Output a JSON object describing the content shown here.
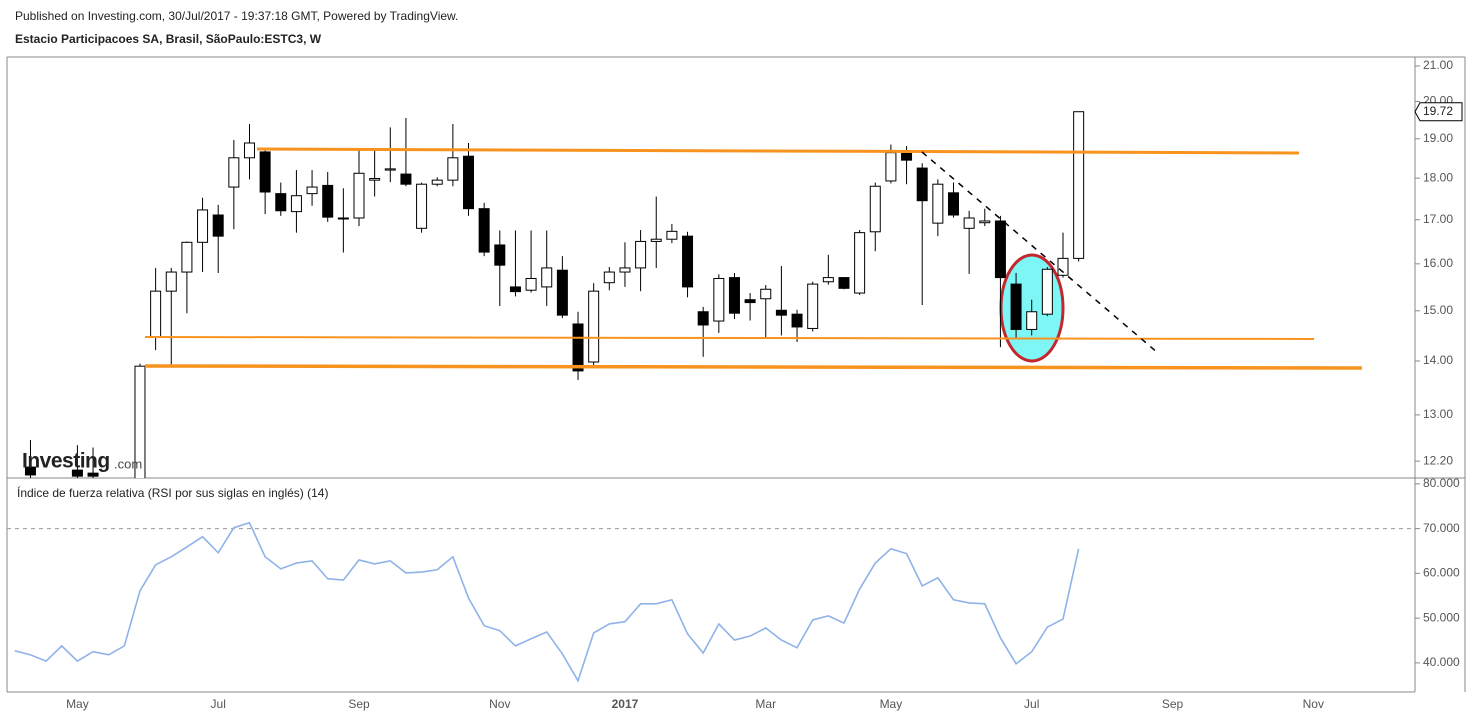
{
  "header": {
    "published": "Published on Investing.com, 30/Jul/2017 - 19:37:18 GMT, Powered by TradingView."
  },
  "logo": {
    "brand": "Investing",
    "suffix": ".com"
  },
  "chart_data": [
    {
      "type": "candlestick",
      "title": "Estacio Participacoes SA, Brasil, SãoPaulo:ESTC3, W",
      "categories": [
        null,
        null,
        null,
        null,
        "May",
        null,
        null,
        null,
        null,
        null,
        null,
        null,
        null,
        "Jul",
        null,
        null,
        null,
        null,
        null,
        null,
        null,
        null,
        "Sep",
        null,
        null,
        null,
        null,
        null,
        null,
        null,
        null,
        "Nov",
        null,
        null,
        null,
        null,
        null,
        null,
        null,
        "2017",
        null,
        null,
        null,
        null,
        null,
        null,
        null,
        null,
        "Mar",
        null,
        null,
        null,
        null,
        null,
        null,
        null,
        "May",
        null,
        null,
        null,
        null,
        null,
        null,
        null,
        null,
        "Jul",
        null,
        null,
        null,
        null,
        null,
        null,
        null,
        null,
        "Sep",
        null,
        null,
        null,
        null,
        null,
        null,
        null,
        null,
        "Nov",
        null,
        null,
        null,
        null,
        null,
        null
      ],
      "open": [
        null,
        12.1,
        null,
        null,
        12.05,
        12.0,
        null,
        null,
        11.5,
        14.47,
        15.41,
        15.82,
        16.48,
        17.11,
        17.78,
        18.51,
        18.66,
        17.62,
        17.19,
        17.62,
        17.82,
        17.02,
        17.04,
        17.95,
        18.2,
        18.1,
        16.8,
        17.85,
        17.95,
        18.55,
        17.26,
        16.42,
        15.5,
        15.43,
        15.5,
        15.86,
        14.73,
        13.98,
        15.59,
        15.82,
        15.91,
        16.5,
        16.55,
        16.62,
        14.98,
        14.79,
        15.7,
        15.23,
        15.25,
        15.01,
        14.93,
        14.64,
        15.61,
        15.7,
        15.37,
        16.72,
        17.93,
        18.62,
        18.25,
        16.92,
        17.64,
        16.8,
        16.93,
        16.97,
        15.56,
        14.62,
        14.93,
        15.75,
        16.12,
        null,
        null,
        null,
        null,
        null,
        null,
        null,
        null,
        null,
        null,
        null,
        null,
        null,
        null,
        null,
        null,
        null,
        null,
        null,
        null,
        null
      ],
      "high": [
        null,
        12.56,
        null,
        null,
        12.47,
        12.43,
        null,
        null,
        13.95,
        15.91,
        15.91,
        16.5,
        17.52,
        17.35,
        18.97,
        19.39,
        18.7,
        17.89,
        18.2,
        18.2,
        18.15,
        17.75,
        18.7,
        18.7,
        19.3,
        19.55,
        17.89,
        18.02,
        19.39,
        18.89,
        17.4,
        16.75,
        16.75,
        16.75,
        16.75,
        16.17,
        14.98,
        15.58,
        15.93,
        16.48,
        16.76,
        17.55,
        16.9,
        16.72,
        15.08,
        15.77,
        15.8,
        15.37,
        15.54,
        15.95,
        15.02,
        15.61,
        16.2,
        15.71,
        16.76,
        17.89,
        18.85,
        18.81,
        18.37,
        17.97,
        17.89,
        17.21,
        17.26,
        17.09,
        15.8,
        15.23,
        15.93,
        16.7,
        19.72,
        null,
        null,
        null,
        null,
        null,
        null,
        null,
        null,
        null,
        null,
        null,
        null,
        null,
        null,
        null,
        null,
        null,
        null,
        null,
        null,
        null
      ],
      "low": [
        null,
        11.9,
        null,
        null,
        11.9,
        11.9,
        null,
        null,
        11.4,
        14.21,
        13.9,
        14.95,
        15.82,
        15.8,
        16.78,
        17.97,
        17.13,
        17.09,
        16.7,
        17.33,
        16.95,
        16.25,
        16.85,
        17.55,
        17.9,
        17.8,
        16.7,
        17.8,
        17.8,
        17.09,
        16.17,
        15.1,
        15.3,
        15.38,
        15.1,
        14.85,
        13.64,
        13.9,
        15.43,
        15.5,
        15.41,
        15.91,
        16.46,
        15.28,
        14.08,
        14.55,
        14.83,
        14.8,
        14.45,
        14.5,
        14.37,
        14.58,
        15.55,
        15.45,
        15.33,
        16.28,
        17.87,
        17.85,
        15.12,
        16.62,
        17.05,
        15.78,
        16.85,
        14.27,
        14.45,
        14.5,
        14.89,
        15.7,
        16.05,
        null,
        null,
        null,
        null,
        null,
        null,
        null,
        null,
        null,
        null,
        null,
        null,
        null,
        null,
        null,
        null,
        null,
        null,
        null,
        null,
        null
      ],
      "close": [
        null,
        11.97,
        null,
        null,
        11.95,
        11.95,
        null,
        null,
        13.9,
        15.41,
        15.82,
        16.48,
        17.23,
        16.62,
        18.51,
        18.89,
        17.66,
        17.21,
        17.57,
        17.78,
        17.06,
        17.04,
        18.12,
        17.99,
        18.23,
        17.85,
        17.85,
        17.95,
        18.51,
        17.26,
        16.26,
        15.97,
        15.4,
        15.68,
        15.91,
        14.91,
        13.81,
        15.41,
        15.82,
        15.91,
        16.5,
        16.55,
        16.73,
        15.5,
        14.71,
        15.68,
        14.95,
        15.17,
        15.45,
        14.91,
        14.67,
        15.56,
        15.7,
        15.47,
        16.7,
        17.8,
        18.64,
        18.45,
        17.45,
        17.85,
        17.11,
        17.04,
        16.97,
        15.7,
        14.62,
        14.98,
        15.88,
        16.12,
        19.72,
        null,
        null,
        null,
        null,
        null,
        null,
        null,
        null,
        null,
        null,
        null,
        null,
        null,
        null,
        null,
        null,
        null,
        null,
        null,
        null,
        null
      ],
      "up_color": "#ffffff",
      "down_color": "#000000",
      "edge_color": "#000000",
      "yscale": "log",
      "ylim": [
        11.92,
        21.26
      ],
      "yticks": [
        {
          "value": 12.2,
          "label": "12.20"
        },
        {
          "value": 13,
          "label": "13.00"
        },
        {
          "value": 14,
          "label": "14.00"
        },
        {
          "value": 15,
          "label": "15.00"
        },
        {
          "value": 16,
          "label": "16.00"
        },
        {
          "value": 17,
          "label": "17.00"
        },
        {
          "value": 18,
          "label": "18.00"
        },
        {
          "value": 19,
          "label": "19.00"
        },
        {
          "value": 20,
          "label": "20.00"
        },
        {
          "value": 21,
          "label": "21.00"
        }
      ],
      "grid": false
    },
    {
      "type": "line",
      "title": "Índice de fuerza relativa (RSI por sus siglas en inglés) (14)",
      "values": [
        42.7,
        41.8,
        40.4,
        43.8,
        40.4,
        42.5,
        41.8,
        43.8,
        56.1,
        61.9,
        63.7,
        65.9,
        68.2,
        64.6,
        70.2,
        71.3,
        63.7,
        61.0,
        62.3,
        62.8,
        58.8,
        58.5,
        63.0,
        62.1,
        62.8,
        60.1,
        60.3,
        60.8,
        63.7,
        54.5,
        48.3,
        47.2,
        43.8,
        45.4,
        46.9,
        42.0,
        36.0,
        46.7,
        48.7,
        49.2,
        53.2,
        53.2,
        54.1,
        46.5,
        42.2,
        48.7,
        45.1,
        46.0,
        47.8,
        45.1,
        43.4,
        49.6,
        50.5,
        48.9,
        56.5,
        62.3,
        65.5,
        64.4,
        57.2,
        59.0,
        54.1,
        53.4,
        53.2,
        45.6,
        39.8,
        42.5,
        48.0,
        49.8,
        65.5,
        null,
        null,
        null,
        null,
        null,
        null,
        null,
        null,
        null,
        null,
        null,
        null,
        null,
        null,
        null,
        null,
        null,
        null,
        null,
        null,
        null
      ],
      "color": "#8fb3e8",
      "ylim": [
        33.5,
        81.3
      ],
      "yticks": [
        {
          "value": 40,
          "label": "40.000"
        },
        {
          "value": 50,
          "label": "50.000"
        },
        {
          "value": 60,
          "label": "60.000"
        },
        {
          "value": 70,
          "label": "70.000"
        },
        {
          "value": 80,
          "label": "80.000"
        }
      ],
      "levels": [
        70
      ],
      "grid": false
    }
  ]
}
